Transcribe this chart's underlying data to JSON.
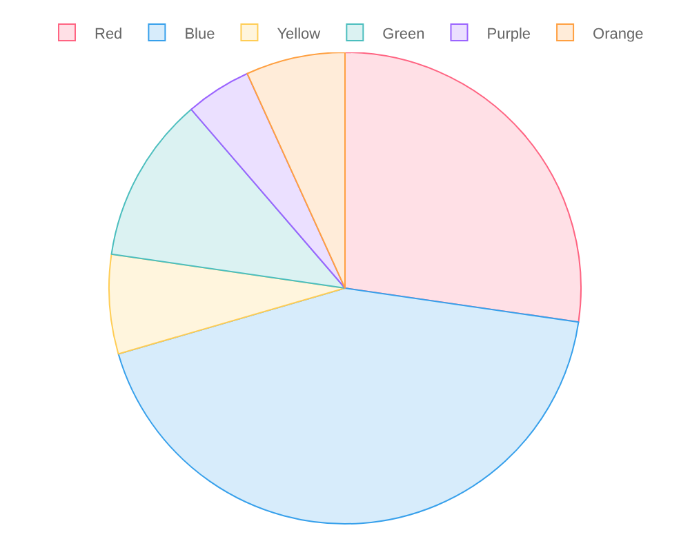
{
  "chart_data": {
    "type": "pie",
    "categories": [
      "Red",
      "Blue",
      "Yellow",
      "Green",
      "Purple",
      "Orange"
    ],
    "values": [
      27.3,
      43.2,
      6.8,
      11.4,
      4.5,
      6.8
    ],
    "colors": [
      "#ffe0e6",
      "#d7ecfb",
      "#fff5dd",
      "#dbf2f2",
      "#ebe0ff",
      "#ffecd9"
    ],
    "legend": "top"
  }
}
